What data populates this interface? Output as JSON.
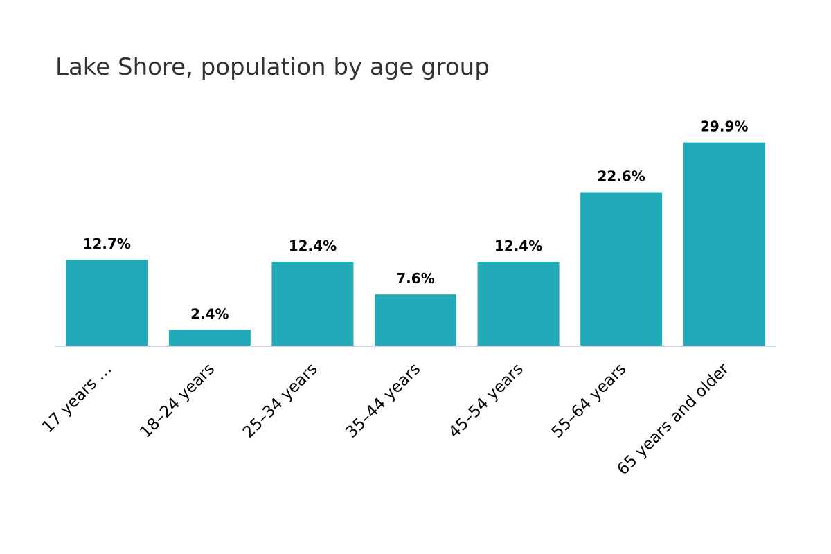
{
  "chart_data": {
    "type": "bar",
    "title": "Lake Shore, population by age group",
    "categories": [
      "17 years …",
      "18–24 years",
      "25–34 years",
      "35–44 years",
      "45–54 years",
      "55–64 years",
      "65 years and older"
    ],
    "values": [
      12.7,
      2.4,
      12.4,
      7.6,
      12.4,
      22.6,
      29.9
    ],
    "value_labels": [
      "12.7%",
      "2.4%",
      "12.4%",
      "7.6%",
      "12.4%",
      "22.6%",
      "29.9%"
    ],
    "xlabel": "",
    "ylabel": "",
    "ylim": [
      0,
      32
    ],
    "grid": false,
    "legend": "none",
    "bar_color": "#22aab9",
    "axis_color": "#ccd6eb"
  }
}
